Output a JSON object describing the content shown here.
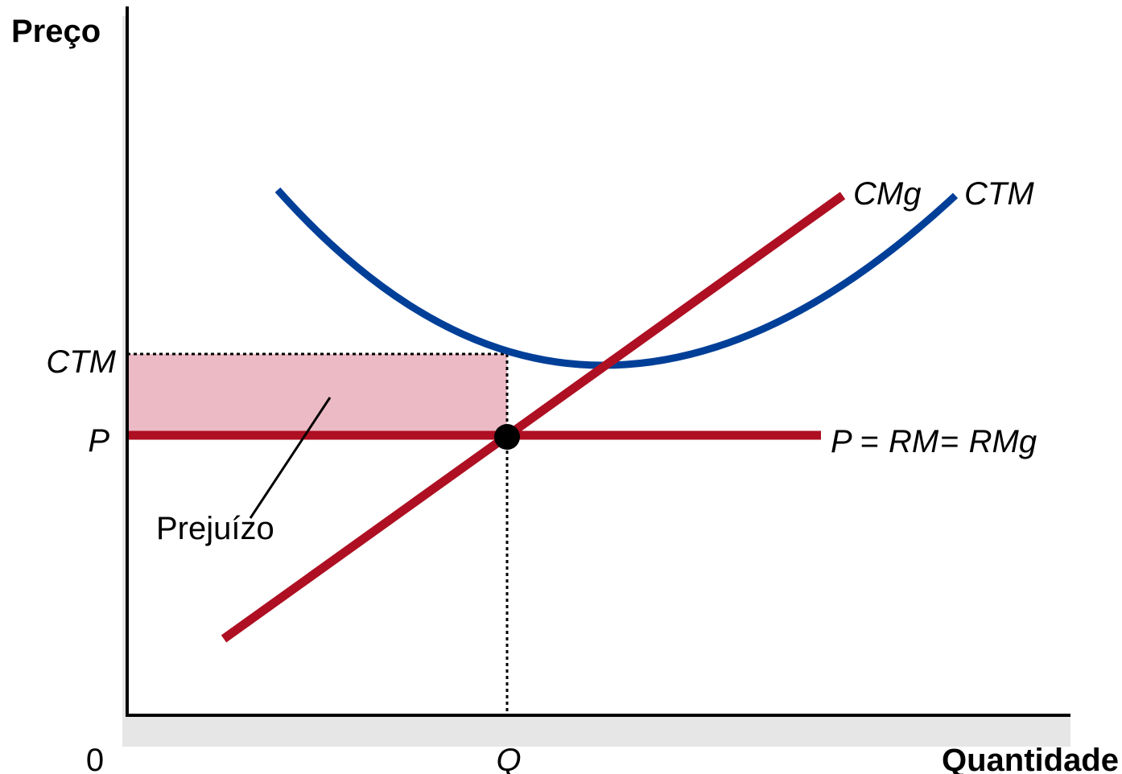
{
  "axes": {
    "y_title": "Preço",
    "x_title": "Quantidade",
    "origin": "0"
  },
  "ticks": {
    "y_upper": "CTM",
    "y_lower": "P",
    "x": "Q"
  },
  "curves": {
    "atc_label": "CTM",
    "mc_label": "CMg",
    "demand_p": "P",
    "demand_eq1": "=",
    "demand_rm": "RM",
    "demand_eq2": "=",
    "demand_rmg": "RMg"
  },
  "region": {
    "loss_label": "Prejuízo"
  },
  "colors": {
    "atc_curve": "#003f98",
    "mc_curve": "#ae0f22",
    "demand_line": "#ae0f22",
    "loss_fill": "#ecbac4",
    "shadow": "#e6e6e6"
  }
}
